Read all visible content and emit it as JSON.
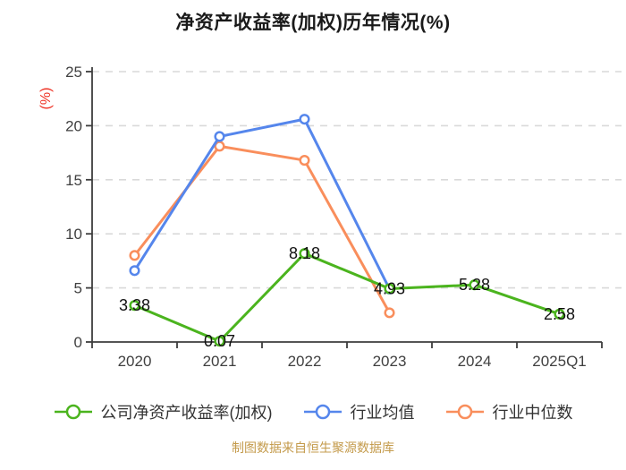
{
  "chart_data": {
    "type": "line",
    "title": "净资产收益率(加权)历年情况(%)",
    "source_note": "制图数据来自恒生聚源数据库",
    "categories": [
      "2020",
      "2021",
      "2022",
      "2023",
      "2024",
      "2025Q1"
    ],
    "series": [
      {
        "id": "company-roe",
        "name": "公司净资产收益率(加权)",
        "color": "#4bb41e",
        "values": [
          3.38,
          0.07,
          8.18,
          4.93,
          5.28,
          2.58
        ],
        "show_point_labels": true
      },
      {
        "id": "industry-mean",
        "name": "行业均值",
        "color": "#5586ec",
        "values": [
          6.6,
          19.0,
          20.6,
          4.9,
          null,
          null
        ],
        "show_point_labels": false
      },
      {
        "id": "industry-median",
        "name": "行业中位数",
        "color": "#f98e5c",
        "values": [
          8.0,
          18.1,
          16.8,
          2.7,
          null,
          null
        ],
        "show_point_labels": false
      }
    ],
    "xlabel": "",
    "ylabel": "(%)",
    "ylim": [
      0,
      25
    ],
    "ytick_step": 5,
    "yticks": [
      "0",
      "5",
      "10",
      "15",
      "20",
      "25"
    ],
    "grid": "horizontal-dashed",
    "legend_position": "bottom",
    "colors": {
      "background": "#ffffff",
      "title": "#1a1a1a",
      "axis": "#3d3d3d",
      "tick_label": "#404040",
      "grid": "#d9d9d9",
      "ylabel": "#ee3224",
      "point_label": "#111111",
      "legend_text": "#333333",
      "source_note": "#c49b4c"
    }
  }
}
